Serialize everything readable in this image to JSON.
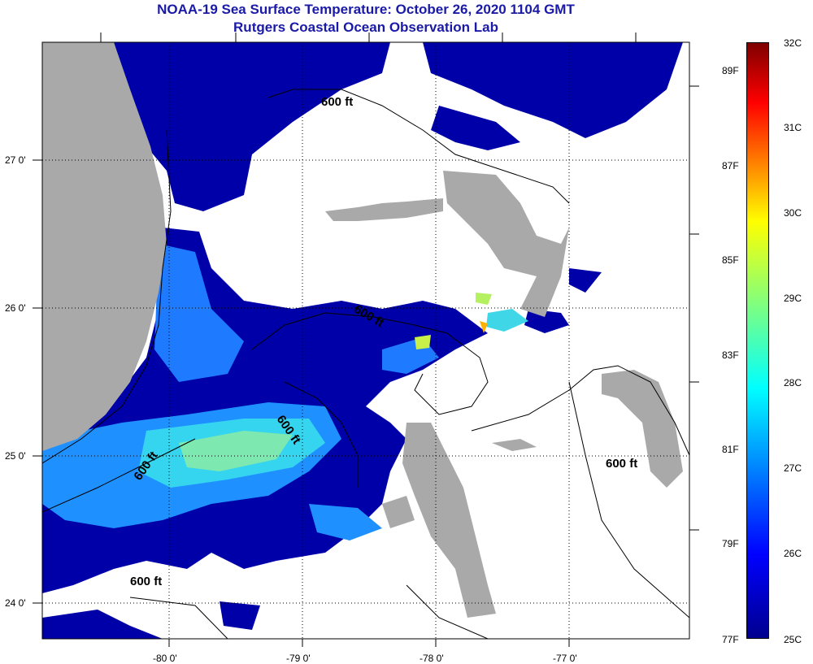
{
  "title": "NOAA-19 Sea Surface Temperature:  October 26, 2020 1104 GMT",
  "subtitle": "Rutgers Coastal Ocean Observation Lab",
  "map": {
    "lat_ticks": [
      "27 0'",
      "26 0'",
      "25 0'",
      "24 0'"
    ],
    "lon_ticks": [
      "-80 0'",
      "-79 0'",
      "-78 0'",
      "-77 0'"
    ],
    "contour_labels": [
      "600 ft",
      "600 ft",
      "600 ft",
      "600 ft",
      "600 ft",
      "600 ft"
    ],
    "colors": {
      "land": "#a9a9a9",
      "ocean_cold": "#0000a8",
      "cloud": "#ffffff"
    }
  },
  "colorbar": {
    "celsius": [
      "32C",
      "31C",
      "30C",
      "29C",
      "28C",
      "27C",
      "26C",
      "25C"
    ],
    "fahrenheit": [
      "89F",
      "87F",
      "85F",
      "83F",
      "81F",
      "79F",
      "77F"
    ]
  }
}
